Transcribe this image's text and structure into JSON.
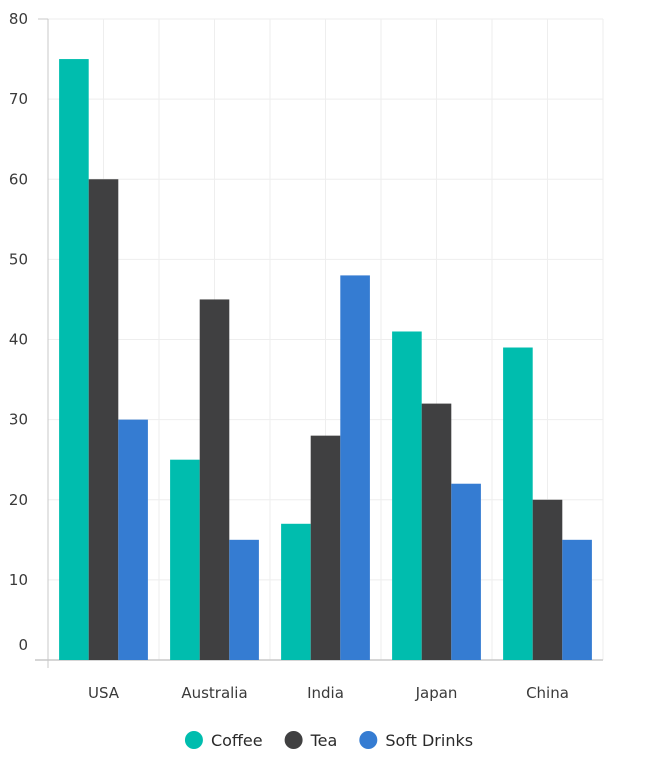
{
  "chart_data": {
    "type": "bar",
    "categories": [
      "USA",
      "Australia",
      "India",
      "Japan",
      "China"
    ],
    "series": [
      {
        "name": "Coffee",
        "values": [
          75,
          25,
          17,
          41,
          39
        ],
        "color": "#00bdae"
      },
      {
        "name": "Tea",
        "values": [
          60,
          45,
          28,
          32,
          20
        ],
        "color": "#404041"
      },
      {
        "name": "Soft Drinks",
        "values": [
          30,
          15,
          48,
          22,
          15
        ],
        "color": "#357cd2"
      }
    ],
    "ylim": [
      0,
      80
    ],
    "yticks": [
      0,
      10,
      20,
      30,
      40,
      50,
      60,
      70,
      80
    ],
    "grid": true,
    "legend_position": "bottom-center"
  },
  "colors": {
    "grid": "#eeeeee",
    "axis": "#c8c8c8"
  }
}
